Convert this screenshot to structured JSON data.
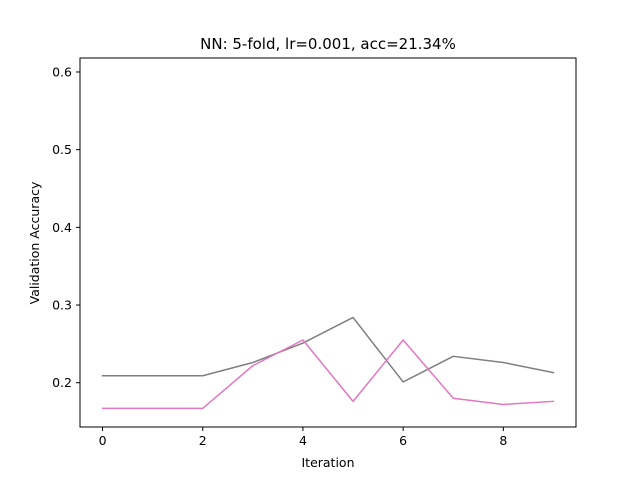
{
  "chart_data": {
    "type": "line",
    "title": "NN: 5-fold, lr=0.001, acc=21.34%",
    "xlabel": "Iteration",
    "ylabel": "Validation Accuracy",
    "xlim": [
      -0.45,
      9.45
    ],
    "ylim": [
      0.143,
      0.618
    ],
    "xticks": [
      0,
      2,
      4,
      6,
      8
    ],
    "yticks": [
      0.2,
      0.3,
      0.4,
      0.5,
      0.6
    ],
    "grid": false,
    "legend": "none",
    "x": [
      0,
      1,
      2,
      3,
      4,
      5,
      6,
      7,
      8,
      9
    ],
    "series": [
      {
        "color": "#7f7f7f",
        "values": [
          0.209,
          0.209,
          0.209,
          0.226,
          0.251,
          0.284,
          0.201,
          0.234,
          0.226,
          0.213
        ]
      },
      {
        "color": "#e377c2",
        "values": [
          0.167,
          0.167,
          0.167,
          0.222,
          0.255,
          0.176,
          0.255,
          0.18,
          0.172,
          0.176
        ]
      }
    ]
  }
}
